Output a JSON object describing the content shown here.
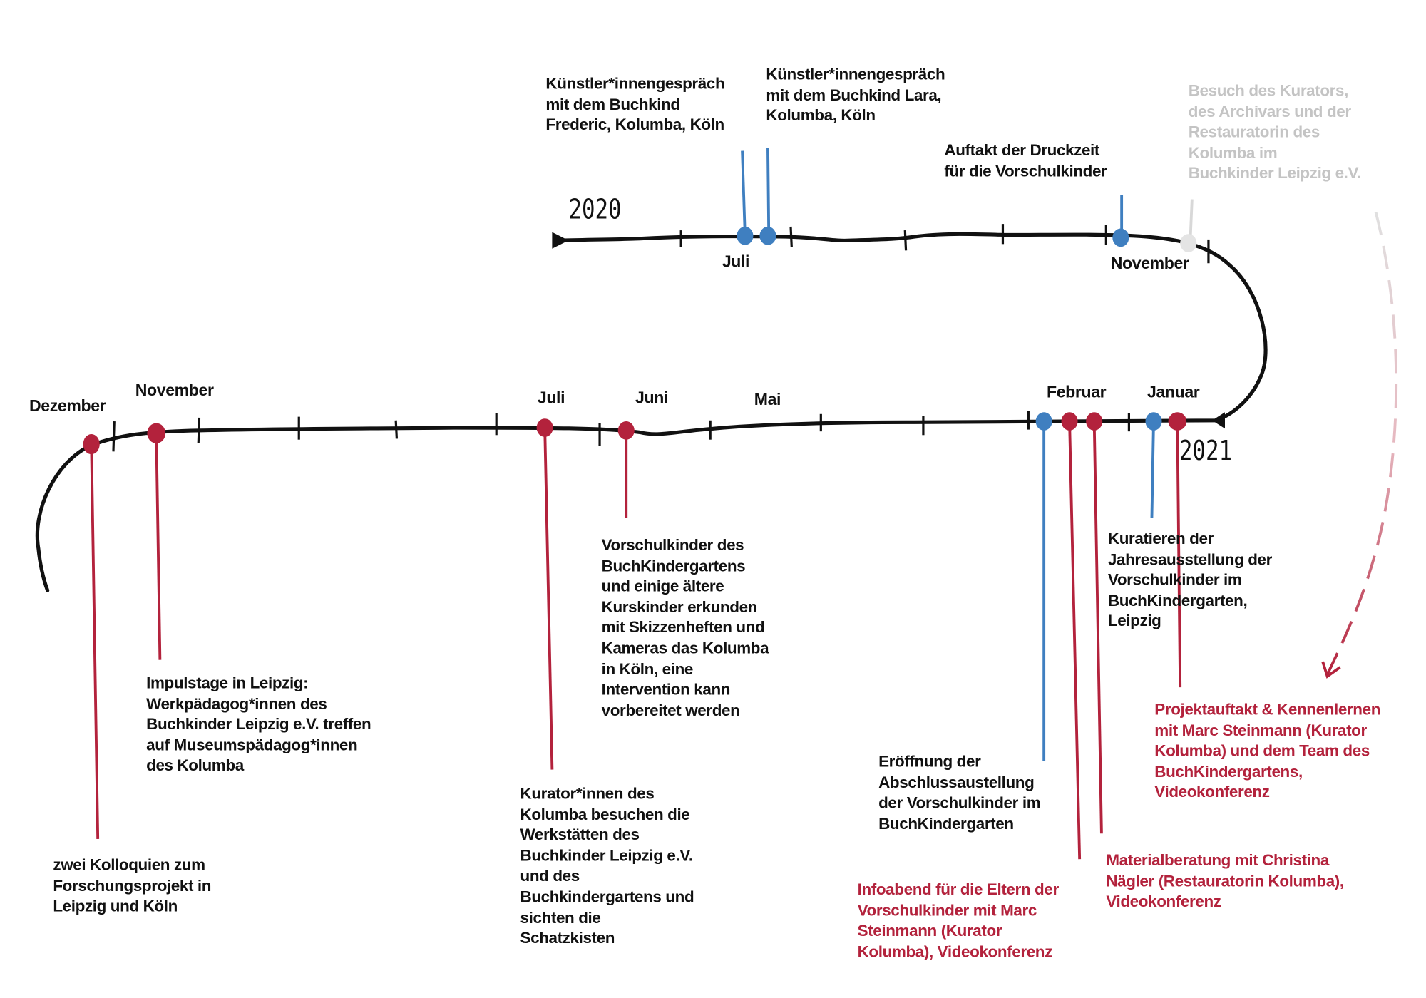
{
  "years": {
    "start": "2020",
    "end": "2021"
  },
  "colors": {
    "line": "#111111",
    "red": "#b3223c",
    "blue": "#3f7fc0",
    "grey": "#d0d0d0"
  },
  "months_top": {
    "juli": "Juli",
    "november": "November"
  },
  "months_bottom": {
    "dezember": "Dezember",
    "november": "November",
    "juli": "Juli",
    "juni": "Juni",
    "mai": "Mai",
    "februar": "Februar",
    "januar": "Januar"
  },
  "events": {
    "frederic": "Künstler*innengespräch\nmit dem Buchkind\nFrederic, Kolumba, Köln",
    "lara": "Künstler*innengespräch\nmit dem Buchkind Lara,\nKolumba, Köln",
    "druckzeit": "Auftakt der Druckzeit\nfür die Vorschulkinder",
    "besuch": "Besuch des Kurators,\ndes Archivars und der\nRestauratorin des\nKolumba im\nBuchkinder Leipzig e.V.",
    "vorschulkinder": "Vorschulkinder des\nBuchKindergartens\nund einige ältere\nKurskinder erkunden\nmit Skizzenheften und\nKameras das Kolumba\nin Köln, eine\nIntervention kann\nvorbereitet werden",
    "kuratieren": "Kuratieren der\nJahresausstellung der\nVorschulkinder im\nBuchKindergarten,\nLeipzig",
    "projektauftakt": "Projektauftakt & Kennenlernen\nmit Marc Steinmann (Kurator\nKolumba) und dem Team des\nBuchKindergartens,\nVideokonferenz",
    "impulstage": "Impulstage in Leipzig:\nWerkpädagog*innen des\nBuchkinder Leipzig e.V. treffen\nauf Museumspädagog*innen\ndes Kolumba",
    "eroeffnung": "Eröffnung der\nAbschlussaustellung\nder Vorschulkinder im\nBuchKindergarten",
    "materialberatung": "Materialberatung mit Christina\nNägler (Restauratorin Kolumba),\nVideokonferenz",
    "infoabend": "Infoabend für die Eltern der\nVorschulkinder mit Marc\nSteinmann (Kurator\nKolumba), Videokonferenz",
    "kuratoren_besuch": "Kurator*innen des\nKolumba besuchen die\nWerkstätten des\nBuchkinder Leipzig e.V.\nund des\nBuchkindergartens und\nsichten die\nSchatzkisten",
    "kolloquien": "zwei Kolloquien zum\nForschungsprojekt in\nLeipzig und Köln"
  }
}
